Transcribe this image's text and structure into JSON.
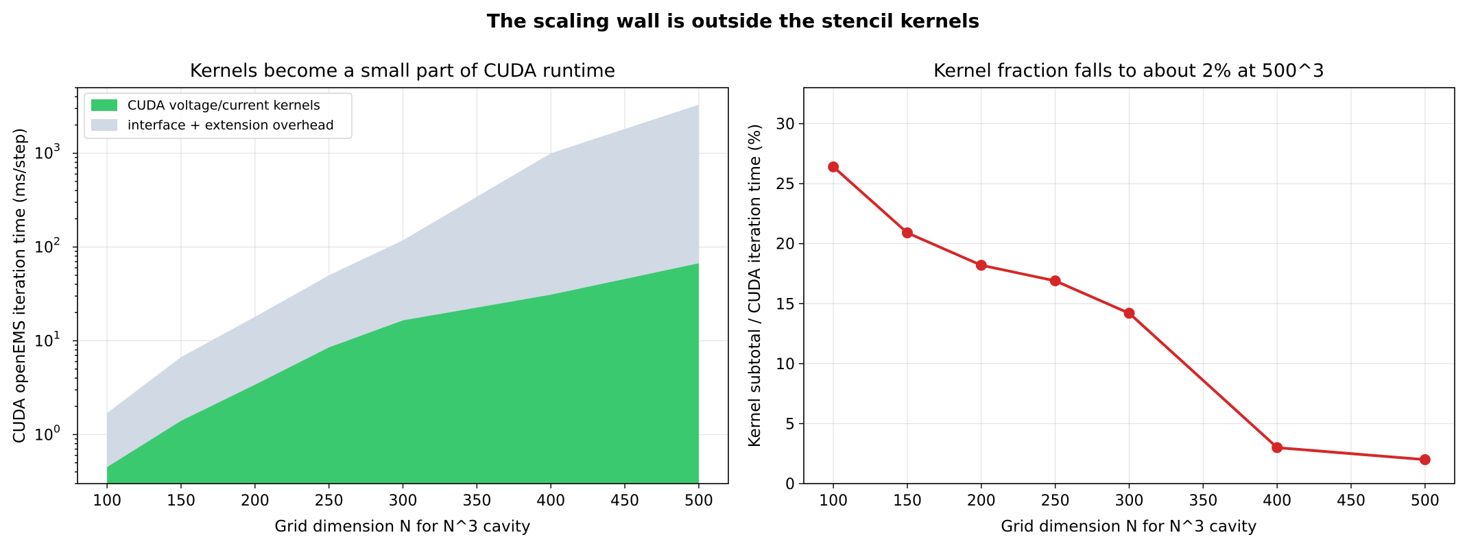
{
  "figure": {
    "suptitle": "The scaling wall is outside the stencil kernels"
  },
  "chart_data": [
    {
      "type": "area",
      "title": "Kernels become a small part of CUDA runtime",
      "xlabel": "Grid dimension N for N^3 cavity",
      "ylabel": "CUDA openEMS iteration time (ms/step)",
      "yscale": "log",
      "xlim": [
        80,
        520
      ],
      "ylim": [
        0.3,
        5000
      ],
      "x": [
        100,
        150,
        200,
        250,
        300,
        400,
        500
      ],
      "x_ticks": [
        100,
        150,
        200,
        250,
        300,
        350,
        400,
        450,
        500
      ],
      "y_ticks": [
        {
          "value": 1,
          "label_base": "10",
          "label_exp": "0"
        },
        {
          "value": 10,
          "label_base": "10",
          "label_exp": "1"
        },
        {
          "value": 100,
          "label_base": "10",
          "label_exp": "2"
        },
        {
          "value": 1000,
          "label_base": "10",
          "label_exp": "3"
        }
      ],
      "grid": true,
      "legend_position": "upper-left",
      "series": [
        {
          "name": "CUDA voltage/current kernels",
          "color": "#3bc96f",
          "values": [
            0.45,
            1.4,
            3.4,
            8.5,
            16.5,
            31,
            67
          ]
        },
        {
          "name": "interface + extension overhead",
          "color": "#d1d9e5",
          "stacked_total": true,
          "values": [
            1.7,
            6.7,
            18,
            50,
            118,
            1000,
            3300
          ]
        }
      ]
    },
    {
      "type": "line",
      "title": "Kernel fraction falls to about 2% at 500^3",
      "xlabel": "Grid dimension N for N^3 cavity",
      "ylabel": "Kernel subtotal / CUDA iteration time (%)",
      "xlim": [
        80,
        520
      ],
      "ylim": [
        0,
        33
      ],
      "x": [
        100,
        150,
        200,
        250,
        300,
        400,
        500
      ],
      "x_ticks": [
        100,
        150,
        200,
        250,
        300,
        350,
        400,
        450,
        500
      ],
      "y_ticks": [
        0,
        5,
        10,
        15,
        20,
        25,
        30
      ],
      "grid": true,
      "series": [
        {
          "color": "#d62728",
          "values": [
            26.4,
            20.9,
            18.2,
            16.9,
            14.2,
            3.0,
            2.0
          ]
        }
      ]
    }
  ]
}
